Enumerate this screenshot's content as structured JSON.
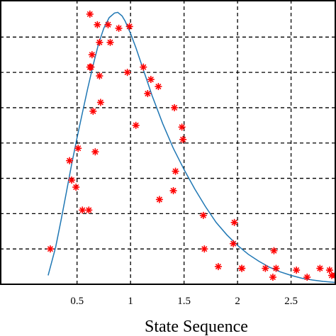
{
  "chart_data": {
    "type": "scatter",
    "xlabel": "State Sequence",
    "ylabel": "",
    "title": "",
    "xlim": [
      -0.22,
      2.92
    ],
    "ylim": [
      0,
      8.05
    ],
    "x_ticks": [
      0.5,
      1,
      1.5,
      2,
      2.5
    ],
    "x_tick_labels": [
      "0.5",
      "1",
      "1.5",
      "2",
      "2.5"
    ],
    "grid": true,
    "legend": "none",
    "colors": {
      "points": "#ff0000",
      "curve": "#1f77b4",
      "grid": "#000000"
    },
    "series": [
      {
        "kind": "points",
        "x": [
          0.25,
          0.43,
          0.45,
          0.49,
          0.51,
          0.55,
          0.61,
          0.62,
          0.62,
          0.63,
          0.64,
          0.65,
          0.67,
          0.69,
          0.71,
          0.71,
          0.72,
          0.79,
          0.81,
          0.89,
          0.97,
          0.99,
          1.05,
          1.12,
          1.16,
          1.19,
          1.26,
          1.27,
          1.4,
          1.41,
          1.42,
          1.48,
          1.49,
          1.68,
          1.69,
          1.82,
          1.96,
          1.97,
          2.04,
          2.04,
          2.26,
          2.33,
          2.34,
          2.36,
          2.55,
          2.65,
          2.77,
          2.86,
          2.88,
          2.91
        ],
        "y": [
          1.0,
          3.5,
          2.95,
          2.75,
          3.85,
          2.1,
          2.1,
          7.65,
          6.15,
          6.15,
          6.5,
          4.9,
          3.75,
          7.35,
          6.85,
          5.9,
          5.15,
          7.35,
          6.85,
          7.25,
          6.0,
          7.3,
          4.5,
          6.15,
          5.4,
          5.8,
          5.6,
          2.4,
          2.65,
          5.0,
          3.2,
          4.45,
          4.1,
          1.95,
          1.0,
          0.5,
          1.15,
          1.75,
          0.45,
          0.45,
          0.45,
          0.2,
          0.95,
          0.45,
          0.4,
          0.2,
          0.45,
          0.4,
          0.25,
          0.25
        ]
      },
      {
        "kind": "curve",
        "x": [
          0.23,
          0.3,
          0.35,
          0.4,
          0.45,
          0.5,
          0.55,
          0.6,
          0.65,
          0.7,
          0.75,
          0.8,
          0.85,
          0.88,
          0.92,
          0.95,
          1.0,
          1.05,
          1.1,
          1.2,
          1.3,
          1.4,
          1.5,
          1.6,
          1.7,
          1.8,
          1.9,
          2.0,
          2.1,
          2.2,
          2.3,
          2.4,
          2.5,
          2.6,
          2.7,
          2.8,
          2.92
        ],
        "y": [
          0.25,
          1.05,
          1.8,
          2.6,
          3.4,
          4.15,
          4.85,
          5.55,
          6.2,
          6.8,
          7.25,
          7.55,
          7.68,
          7.7,
          7.6,
          7.45,
          7.1,
          6.7,
          6.25,
          5.35,
          4.55,
          3.85,
          3.25,
          2.7,
          2.2,
          1.75,
          1.4,
          1.1,
          0.85,
          0.65,
          0.48,
          0.35,
          0.25,
          0.17,
          0.12,
          0.08,
          0.05
        ]
      }
    ]
  }
}
